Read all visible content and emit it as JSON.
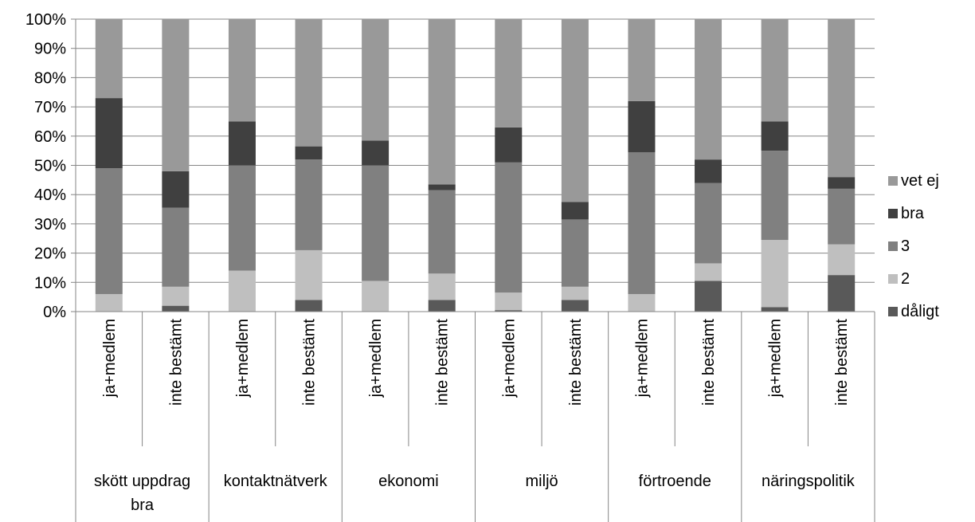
{
  "chart_data": {
    "type": "bar",
    "stacked": true,
    "percent_stacked": true,
    "groups": [
      {
        "label": "skött uppdrag bra",
        "lines": [
          "skött uppdrag",
          "bra"
        ]
      },
      {
        "label": "kontaktnätverk",
        "lines": [
          "kontaktnätverk"
        ]
      },
      {
        "label": "ekonomi",
        "lines": [
          "ekonomi"
        ]
      },
      {
        "label": "miljö",
        "lines": [
          "miljö"
        ]
      },
      {
        "label": "förtroende",
        "lines": [
          "förtroende"
        ]
      },
      {
        "label": "näringspolitik",
        "lines": [
          "näringspolitik"
        ]
      }
    ],
    "categories": [
      "ja+medlem",
      "inte bestämt",
      "ja+medlem",
      "inte bestämt",
      "ja+medlem",
      "inte bestämt",
      "ja+medlem",
      "inte bestämt",
      "ja+medlem",
      "inte bestämt",
      "ja+medlem",
      "inte bestämt"
    ],
    "series": [
      {
        "name": "dåligt",
        "color": "#595959",
        "values": [
          0,
          2,
          0,
          4,
          0,
          4,
          0.5,
          4,
          0,
          10.5,
          1.5,
          12.5
        ]
      },
      {
        "name": "2",
        "color": "#bfbfbf",
        "values": [
          6,
          6.5,
          14,
          17,
          10.5,
          9,
          6,
          4.5,
          6,
          6,
          23,
          10.5
        ]
      },
      {
        "name": "3",
        "color": "#808080",
        "values": [
          43,
          27,
          36,
          31,
          39.5,
          28.5,
          44.5,
          23,
          48.5,
          27.5,
          30.5,
          19
        ]
      },
      {
        "name": "bra",
        "color": "#404040",
        "values": [
          24,
          12.5,
          15,
          4.5,
          8.5,
          2,
          12,
          6,
          17.5,
          8,
          10,
          4
        ]
      },
      {
        "name": "vet ej",
        "color": "#999999",
        "values": [
          27,
          52,
          35,
          43.5,
          41.5,
          56.5,
          37,
          62.5,
          28,
          48,
          35,
          54
        ]
      }
    ],
    "y_ticks": [
      "0%",
      "10%",
      "20%",
      "30%",
      "40%",
      "50%",
      "60%",
      "70%",
      "80%",
      "90%",
      "100%"
    ],
    "ylim": [
      0,
      100
    ],
    "grid": true,
    "legend_position": "right",
    "legend_order": [
      "vet ej",
      "bra",
      "3",
      "2",
      "dåligt"
    ]
  }
}
